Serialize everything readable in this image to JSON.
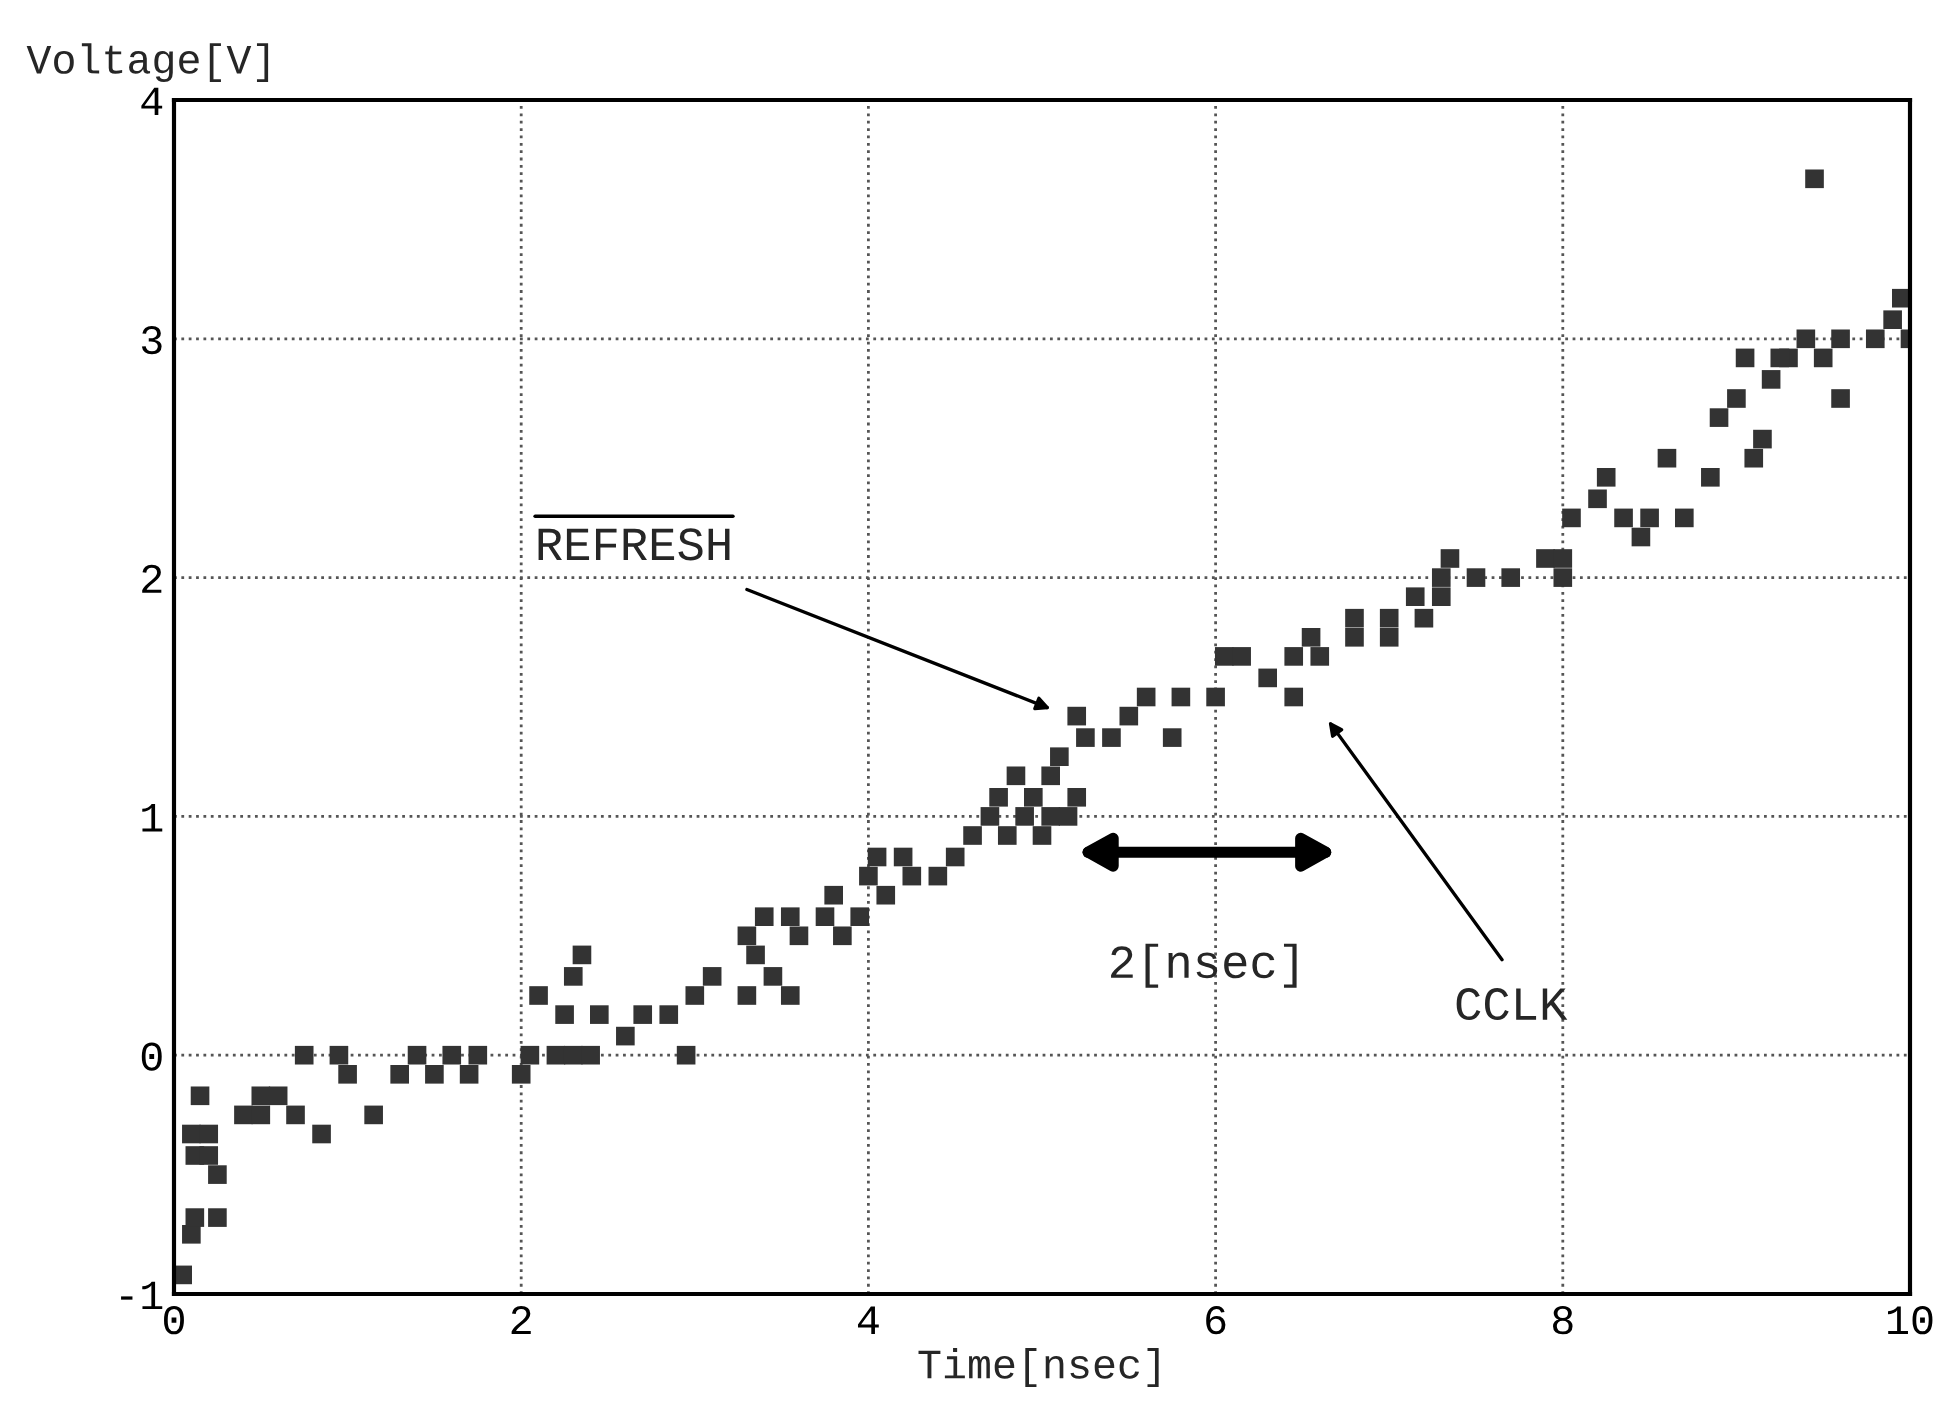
{
  "chart_data": {
    "type": "scatter",
    "xlabel": "Time[nsec]",
    "ylabel": "Voltage[V]",
    "xlim": [
      0,
      10
    ],
    "ylim": [
      -1,
      4
    ],
    "xticks": [
      0,
      2,
      4,
      6,
      8,
      10
    ],
    "yticks": [
      -1,
      0,
      1,
      2,
      3,
      4
    ],
    "grid": true,
    "marker": "square",
    "series": [
      {
        "color": "#333333",
        "x": [
          0.05,
          0.1,
          0.12,
          0.25,
          0.1,
          0.2,
          0.12,
          0.2,
          0.25,
          0.15,
          0.4,
          0.5,
          0.6,
          0.5,
          0.75,
          0.7,
          0.85,
          0.95,
          1.0,
          1.15,
          1.3,
          1.4,
          1.5,
          1.6,
          1.7,
          1.75,
          2.0,
          2.05,
          2.2,
          2.3,
          2.4,
          2.1,
          2.3,
          2.35,
          2.25,
          2.45,
          2.6,
          2.7,
          2.85,
          2.95,
          3.0,
          3.1,
          3.3,
          3.35,
          3.45,
          3.55,
          3.3,
          3.4,
          3.55,
          3.6,
          3.75,
          3.8,
          3.85,
          3.95,
          4.0,
          4.1,
          4.05,
          4.2,
          4.25,
          4.4,
          4.5,
          4.6,
          4.7,
          4.8,
          4.9,
          5.0,
          4.75,
          4.85,
          4.95,
          5.05,
          5.05,
          5.15,
          5.2,
          5.1,
          5.25,
          5.4,
          5.2,
          5.5,
          5.6,
          5.8,
          5.75,
          6.0,
          6.05,
          6.15,
          6.3,
          6.45,
          6.45,
          6.55,
          6.6,
          6.8,
          6.8,
          7.0,
          7.0,
          7.2,
          7.15,
          7.3,
          7.3,
          7.35,
          7.5,
          7.7,
          7.9,
          8.0,
          8.0,
          8.05,
          8.2,
          8.25,
          8.35,
          8.45,
          8.5,
          8.6,
          8.7,
          8.85,
          8.9,
          9.0,
          9.1,
          9.15,
          9.05,
          9.2,
          9.3,
          9.4,
          9.5,
          9.6,
          9.6,
          9.8,
          9.9,
          9.95,
          10.0,
          9.45,
          9.25
        ],
        "values": [
          -0.92,
          -0.75,
          -0.68,
          -0.68,
          -0.33,
          -0.33,
          -0.42,
          -0.42,
          -0.5,
          -0.17,
          -0.25,
          -0.17,
          -0.17,
          -0.25,
          0,
          -0.25,
          -0.33,
          0,
          -0.08,
          -0.25,
          -0.08,
          0,
          -0.08,
          0,
          -0.08,
          0,
          -0.08,
          0,
          0,
          0,
          0,
          0.25,
          0.33,
          0.42,
          0.17,
          0.17,
          0.08,
          0.17,
          0.17,
          0,
          0.25,
          0.33,
          0.25,
          0.42,
          0.33,
          0.25,
          0.5,
          0.58,
          0.58,
          0.5,
          0.58,
          0.67,
          0.5,
          0.58,
          0.75,
          0.67,
          0.83,
          0.83,
          0.75,
          0.75,
          0.83,
          0.92,
          1.0,
          0.92,
          1.0,
          0.92,
          1.08,
          1.17,
          1.08,
          1.17,
          1.0,
          1.0,
          1.08,
          1.25,
          1.33,
          1.33,
          1.42,
          1.42,
          1.5,
          1.5,
          1.33,
          1.5,
          1.67,
          1.67,
          1.58,
          1.5,
          1.67,
          1.75,
          1.67,
          1.75,
          1.83,
          1.75,
          1.83,
          1.83,
          1.92,
          2.0,
          1.92,
          2.08,
          2.0,
          2.0,
          2.08,
          2.08,
          2.0,
          2.25,
          2.33,
          2.42,
          2.25,
          2.17,
          2.25,
          2.5,
          2.25,
          2.42,
          2.67,
          2.75,
          2.5,
          2.58,
          2.92,
          2.83,
          2.92,
          3.0,
          2.92,
          2.75,
          3.0,
          3.0,
          3.08,
          3.17,
          3.0,
          3.67,
          2.92
        ]
      }
    ],
    "annotations": [
      "REFRESH",
      "CCLK",
      "2[nsec]"
    ]
  }
}
